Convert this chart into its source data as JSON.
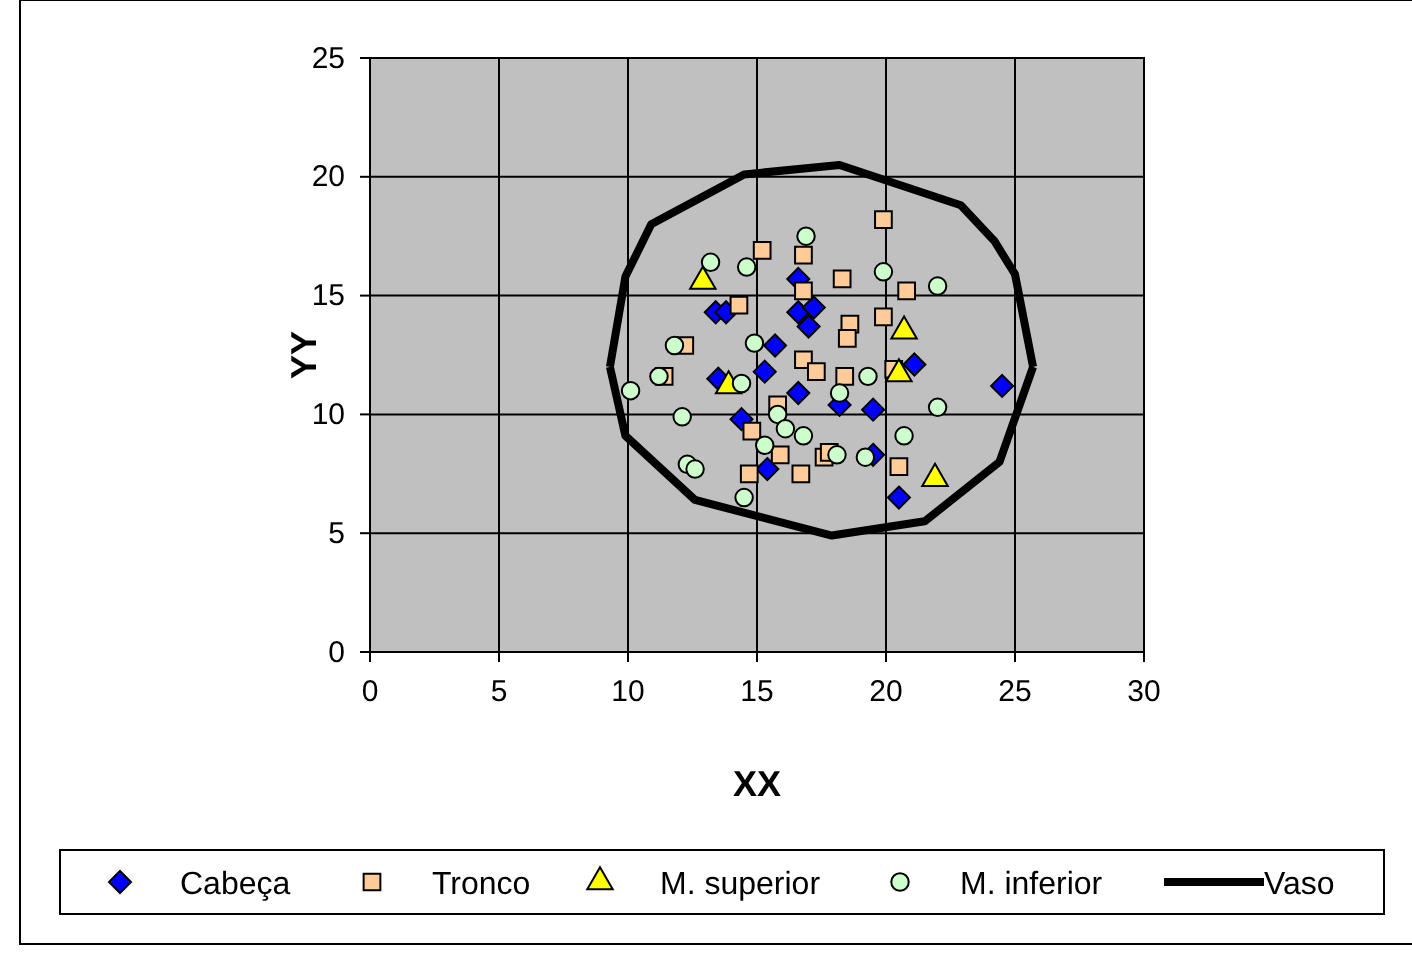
{
  "chart_data": {
    "type": "scatter",
    "xlabel": "XX",
    "ylabel": "YY",
    "xlim": [
      0,
      30
    ],
    "xticks": [
      0,
      5,
      10,
      15,
      20,
      25,
      30
    ],
    "ylim": [
      0,
      25
    ],
    "yticks": [
      0,
      5,
      10,
      15,
      20,
      25
    ],
    "grid": true,
    "legend": "bottom",
    "series": [
      {
        "name": "Cabeça",
        "color": "#0000ff",
        "marker": "diamond",
        "x": [
          13.4,
          13.8,
          16.6,
          16.6,
          17.2,
          17.0,
          15.7,
          15.3,
          13.5,
          16.6,
          18.2,
          14.4,
          15.4,
          21.1,
          24.5,
          19.5,
          20.5,
          19.5
        ],
        "values": [
          14.3,
          14.3,
          15.7,
          14.3,
          14.5,
          13.7,
          12.9,
          11.8,
          11.5,
          10.9,
          10.4,
          9.8,
          7.7,
          12.1,
          11.2,
          10.2,
          6.5,
          8.3
        ]
      },
      {
        "name": "Tronco",
        "color": "#ffcc99",
        "marker": "square",
        "x": [
          15.2,
          16.8,
          18.3,
          16.8,
          14.3,
          18.6,
          18.5,
          12.2,
          11.4,
          16.8,
          17.3,
          18.4,
          15.8,
          14.8,
          15.9,
          16.7,
          14.7,
          17.6,
          17.8,
          19.9,
          20.8,
          19.9,
          20.3,
          20.5
        ],
        "values": [
          16.9,
          16.7,
          15.7,
          15.2,
          14.6,
          13.8,
          13.2,
          12.9,
          11.6,
          12.3,
          11.8,
          11.6,
          10.4,
          9.3,
          8.3,
          7.5,
          7.5,
          8.2,
          8.4,
          18.2,
          15.2,
          14.1,
          11.9,
          7.8
        ]
      },
      {
        "name": "M. superior",
        "color": "#ffff00",
        "marker": "triangle",
        "x": [
          12.9,
          13.9,
          20.7,
          20.5,
          21.9
        ],
        "values": [
          15.6,
          11.2,
          13.5,
          11.7,
          7.3
        ]
      },
      {
        "name": "M. inferior",
        "color": "#ccffcc",
        "marker": "circle",
        "x": [
          16.9,
          13.2,
          14.6,
          11.8,
          14.9,
          11.2,
          10.1,
          14.4,
          18.2,
          15.8,
          12.1,
          16.1,
          16.8,
          15.3,
          18.1,
          12.3,
          12.6,
          14.5,
          19.9,
          22.0,
          19.3,
          22.0,
          20.7,
          19.2
        ],
        "values": [
          17.5,
          16.4,
          16.2,
          12.9,
          13.0,
          11.6,
          11.0,
          11.3,
          10.9,
          10.0,
          9.9,
          9.4,
          9.1,
          8.7,
          8.3,
          7.9,
          7.7,
          6.5,
          16.0,
          15.4,
          11.6,
          10.3,
          9.1,
          8.2
        ]
      },
      {
        "name": "Vaso",
        "type": "line",
        "color": "#000000",
        "marker": "none",
        "x": [
          9.3,
          9.9,
          10.9,
          14.5,
          18.2,
          22.9,
          24.2,
          25.0,
          25.7,
          null,
          9.3,
          9.9,
          12.6,
          17.9,
          21.5,
          24.4,
          25.7
        ],
        "values": [
          12.0,
          15.8,
          18.0,
          20.1,
          20.5,
          18.8,
          17.3,
          15.9,
          12.0,
          null,
          12.0,
          9.1,
          6.4,
          4.9,
          5.5,
          8.0,
          12.0
        ]
      }
    ]
  }
}
